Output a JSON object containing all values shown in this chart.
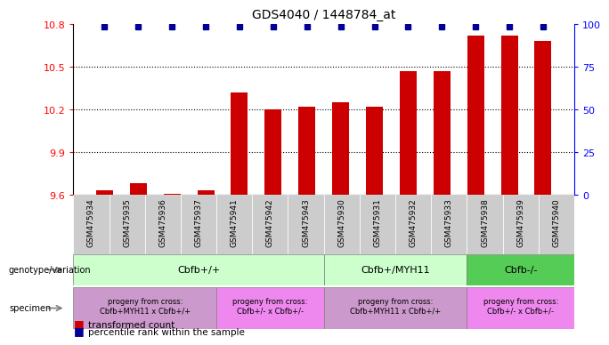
{
  "title": "GDS4040 / 1448784_at",
  "samples": [
    "GSM475934",
    "GSM475935",
    "GSM475936",
    "GSM475937",
    "GSM475941",
    "GSM475942",
    "GSM475943",
    "GSM475930",
    "GSM475931",
    "GSM475932",
    "GSM475933",
    "GSM475938",
    "GSM475939",
    "GSM475940"
  ],
  "bar_values": [
    9.63,
    9.68,
    9.605,
    9.63,
    10.32,
    10.2,
    10.22,
    10.25,
    10.22,
    10.47,
    10.47,
    10.72,
    10.72,
    10.68
  ],
  "percentile_shown": [
    true,
    true,
    true,
    true,
    true,
    true,
    true,
    true,
    true,
    true,
    true,
    true,
    true,
    true
  ],
  "ylim_left": [
    9.6,
    10.8
  ],
  "ylim_right": [
    0,
    100
  ],
  "yticks_left": [
    9.6,
    9.9,
    10.2,
    10.5,
    10.8
  ],
  "yticks_right": [
    0,
    25,
    50,
    75,
    100
  ],
  "bar_color": "#cc0000",
  "percentile_color": "#000099",
  "bar_bottom": 9.6,
  "bar_width": 0.5,
  "genotype_groups": [
    {
      "label": "Cbfb+/+",
      "start": 0,
      "end": 6,
      "color": "#ccffcc"
    },
    {
      "label": "Cbfb+/MYH11",
      "start": 7,
      "end": 10,
      "color": "#ccffcc"
    },
    {
      "label": "Cbfb-/-",
      "start": 11,
      "end": 13,
      "color": "#55cc55"
    }
  ],
  "specimen_groups": [
    {
      "label": "progeny from cross:\nCbfb+MYH11 x Cbfb+/+",
      "start": 0,
      "end": 3,
      "color": "#cc99cc"
    },
    {
      "label": "progeny from cross:\nCbfb+/- x Cbfb+/-",
      "start": 4,
      "end": 6,
      "color": "#ee88ee"
    },
    {
      "label": "progeny from cross:\nCbfb+MYH11 x Cbfb+/+",
      "start": 7,
      "end": 10,
      "color": "#cc99cc"
    },
    {
      "label": "progeny from cross:\nCbfb+/- x Cbfb+/-",
      "start": 11,
      "end": 13,
      "color": "#ee88ee"
    }
  ],
  "legend_red_label": "transformed count",
  "legend_blue_label": "percentile rank within the sample",
  "sample_label_bg": "#cccccc"
}
